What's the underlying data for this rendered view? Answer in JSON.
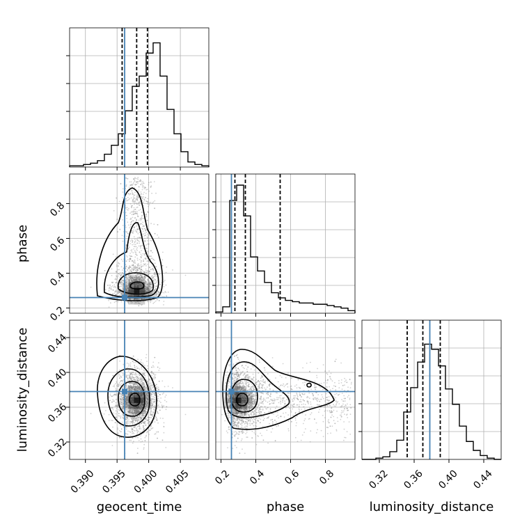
{
  "colors": {
    "truth": "#4682b4",
    "hist": "#000000",
    "grid": "#b0b0b0",
    "points": "#9a9a9a"
  },
  "chart_data": {
    "type": "corner",
    "parameters": [
      "geocent_time",
      "phase",
      "luminosity_distance"
    ],
    "truths": {
      "geocent_time": 0.3962,
      "phase": 0.26,
      "luminosity_distance": 0.378
    },
    "quantiles": {
      "geocent_time": [
        0.3958,
        0.3981,
        0.3998
      ],
      "phase": [
        0.28,
        0.34,
        0.54
      ],
      "luminosity_distance": [
        0.352,
        0.37,
        0.39
      ]
    },
    "ranges": {
      "geocent_time": [
        0.3875,
        0.4095
      ],
      "phase": [
        0.17,
        0.97
      ],
      "luminosity_distance": [
        0.3,
        0.46
      ]
    },
    "ticks": {
      "geocent_time": [
        "0.390",
        "0.395",
        "0.400",
        "0.405"
      ],
      "phase": [
        "0.2",
        "0.4",
        "0.6",
        "0.8"
      ],
      "luminosity_distance": [
        "0.32",
        "0.36",
        "0.40",
        "0.44"
      ]
    },
    "tick_values": {
      "geocent_time": [
        0.39,
        0.395,
        0.4,
        0.405
      ],
      "phase": [
        0.2,
        0.4,
        0.6,
        0.8
      ],
      "luminosity_distance": [
        0.32,
        0.36,
        0.4,
        0.44
      ]
    },
    "histograms": {
      "geocent_time": [
        0.01,
        0.01,
        0.02,
        0.03,
        0.05,
        0.1,
        0.17,
        0.26,
        0.44,
        0.63,
        0.71,
        0.89,
        0.97,
        0.71,
        0.45,
        0.26,
        0.12,
        0.04,
        0.02,
        0.01
      ],
      "phase": [
        0.01,
        0.05,
        0.88,
        1.0,
        0.76,
        0.44,
        0.33,
        0.24,
        0.16,
        0.12,
        0.1,
        0.09,
        0.08,
        0.08,
        0.07,
        0.07,
        0.06,
        0.05,
        0.04,
        0.02
      ],
      "luminosity_distance": [
        0.0,
        0.0,
        0.01,
        0.02,
        0.06,
        0.15,
        0.37,
        0.56,
        0.76,
        0.9,
        0.86,
        0.73,
        0.55,
        0.43,
        0.26,
        0.14,
        0.07,
        0.03,
        0.01,
        0.0
      ]
    },
    "grid": true
  }
}
